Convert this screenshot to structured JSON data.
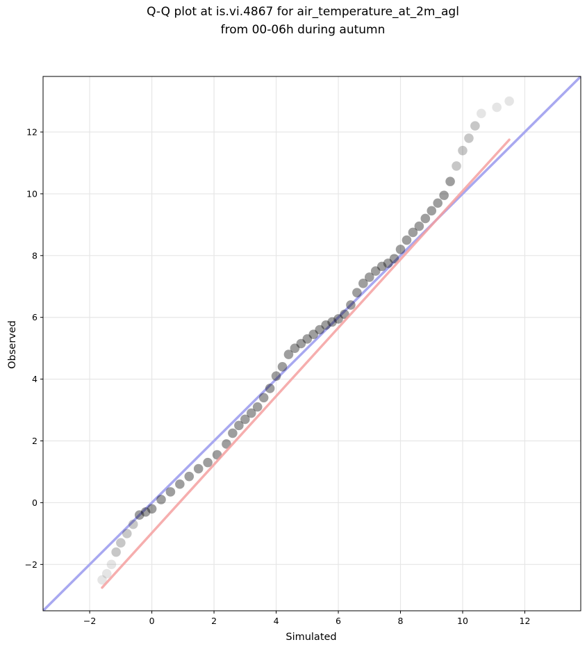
{
  "chart_data": {
    "type": "scatter",
    "title_lines": [
      "Q-Q plot at is.vi.4867 for air_temperature_at_2m_agl",
      "from 00-06h during autumn"
    ],
    "xlabel": "Simulated",
    "ylabel": "Observed",
    "xlim": [
      -3.5,
      13.8
    ],
    "ylim": [
      -3.5,
      13.8
    ],
    "xticks": [
      -2,
      0,
      2,
      4,
      6,
      8,
      10,
      12
    ],
    "yticks": [
      -2,
      0,
      2,
      4,
      6,
      8,
      10,
      12
    ],
    "xtick_labels": [
      "−2",
      "0",
      "2",
      "4",
      "6",
      "8",
      "10",
      "12"
    ],
    "ytick_labels": [
      "−2",
      "0",
      "2",
      "4",
      "6",
      "8",
      "10",
      "12"
    ],
    "grid": true,
    "series": [
      {
        "kind": "quantile-points",
        "color": "#000000",
        "x": [
          -1.6,
          -1.45,
          -1.3,
          -1.15,
          -1.0,
          -0.8,
          -0.6,
          -0.4,
          -0.2,
          0.0,
          0.3,
          0.6,
          0.9,
          1.2,
          1.5,
          1.8,
          2.1,
          2.4,
          2.6,
          2.8,
          3.0,
          3.2,
          3.4,
          3.6,
          3.8,
          4.0,
          4.2,
          4.4,
          4.6,
          4.8,
          5.0,
          5.2,
          5.4,
          5.6,
          5.8,
          6.0,
          6.2,
          6.4,
          6.6,
          6.8,
          7.0,
          7.2,
          7.4,
          7.6,
          7.8,
          8.0,
          8.2,
          8.4,
          8.6,
          8.8,
          9.0,
          9.2,
          9.4,
          9.6,
          9.8,
          10.0,
          10.2,
          10.4,
          10.6,
          11.1,
          11.5
        ],
        "y": [
          -2.5,
          -2.3,
          -2.0,
          -1.6,
          -1.3,
          -1.0,
          -0.7,
          -0.4,
          -0.3,
          -0.2,
          0.1,
          0.35,
          0.6,
          0.85,
          1.1,
          1.3,
          1.55,
          1.9,
          2.25,
          2.5,
          2.7,
          2.9,
          3.1,
          3.4,
          3.7,
          4.1,
          4.4,
          4.8,
          5.0,
          5.15,
          5.3,
          5.45,
          5.6,
          5.75,
          5.85,
          5.95,
          6.1,
          6.4,
          6.8,
          7.1,
          7.3,
          7.5,
          7.65,
          7.75,
          7.9,
          8.2,
          8.5,
          8.75,
          8.95,
          9.2,
          9.45,
          9.7,
          9.95,
          10.4,
          10.9,
          11.4,
          11.8,
          12.2,
          12.6,
          12.8,
          13.0
        ]
      },
      {
        "kind": "fit-line",
        "color": "#f4a0a0",
        "x": [
          -1.6,
          11.5
        ],
        "y": [
          -2.75,
          11.75
        ]
      },
      {
        "kind": "identity-line",
        "color": "#a8a8f0",
        "x": [
          -3.5,
          13.8
        ],
        "y": [
          -3.5,
          13.8
        ]
      }
    ]
  }
}
